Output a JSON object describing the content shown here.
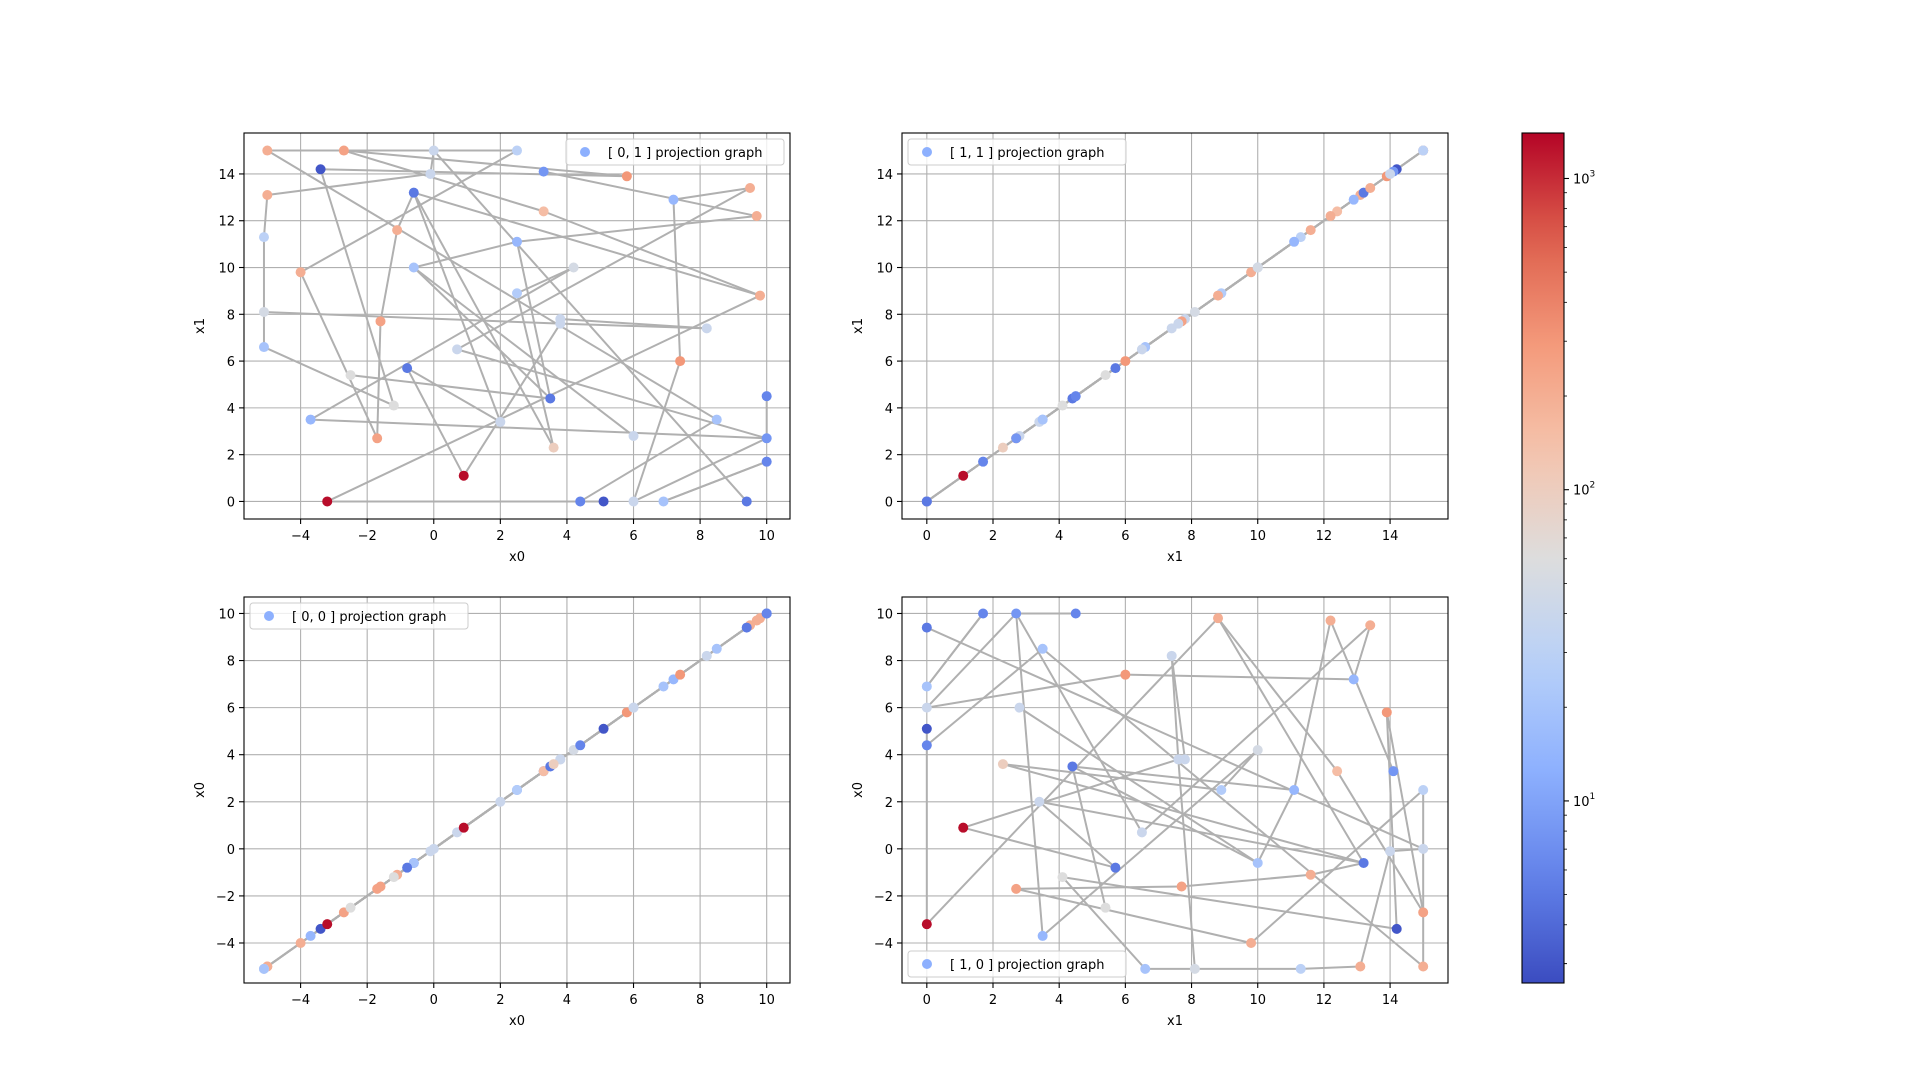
{
  "colors": {
    "edge": "#b0b0b0",
    "grid": "#b0b0b0",
    "legend_marker": "#8db0fe",
    "colormap": "coolwarm"
  },
  "colorbar": {
    "scale": "log",
    "vmin": 2.6,
    "vmax": 1400,
    "tick_labels": [
      "10^1",
      "10^2",
      "10^3"
    ],
    "tick_values": [
      10,
      100,
      1000
    ]
  },
  "chart_data": [
    {
      "type": "scatter",
      "panel": "top-left",
      "legend": "[ 0, 1 ] projection graph",
      "legend_position": "upper right",
      "xlabel": "x0",
      "ylabel": "x1",
      "xlim": [
        -5.7,
        10.7
      ],
      "ylim": [
        -0.75,
        15.75
      ],
      "xticks": [
        -4,
        -2,
        0,
        2,
        4,
        6,
        8,
        10
      ],
      "yticks": [
        0,
        2,
        4,
        6,
        8,
        10,
        12,
        14
      ],
      "grid": true,
      "points": [
        {
          "x": -5.0,
          "y": 15.0,
          "c": 200
        },
        {
          "x": -2.7,
          "y": 15.0,
          "c": 250
        },
        {
          "x": 0.0,
          "y": 15.0,
          "c": 40
        },
        {
          "x": 2.5,
          "y": 15.0,
          "c": 30
        },
        {
          "x": -3.4,
          "y": 14.2,
          "c": 3
        },
        {
          "x": 3.3,
          "y": 14.1,
          "c": 8
        },
        {
          "x": 5.8,
          "y": 13.9,
          "c": 300
        },
        {
          "x": -5.0,
          "y": 13.1,
          "c": 200
        },
        {
          "x": -0.6,
          "y": 13.2,
          "c": 5
        },
        {
          "x": -0.1,
          "y": 14.0,
          "c": 40
        },
        {
          "x": 7.2,
          "y": 12.9,
          "c": 15
        },
        {
          "x": 9.5,
          "y": 13.4,
          "c": 200
        },
        {
          "x": 3.3,
          "y": 12.4,
          "c": 150
        },
        {
          "x": 9.7,
          "y": 12.2,
          "c": 200
        },
        {
          "x": -5.1,
          "y": 11.3,
          "c": 30
        },
        {
          "x": -1.1,
          "y": 11.6,
          "c": 200
        },
        {
          "x": 2.5,
          "y": 11.1,
          "c": 15
        },
        {
          "x": -4.0,
          "y": 9.8,
          "c": 200
        },
        {
          "x": -0.6,
          "y": 10.0,
          "c": 20
        },
        {
          "x": 4.2,
          "y": 10.0,
          "c": 50
        },
        {
          "x": 2.5,
          "y": 8.9,
          "c": 25
        },
        {
          "x": 9.8,
          "y": 8.8,
          "c": 200
        },
        {
          "x": -5.1,
          "y": 8.1,
          "c": 50
        },
        {
          "x": 3.8,
          "y": 7.8,
          "c": 40
        },
        {
          "x": -1.6,
          "y": 7.7,
          "c": 250
        },
        {
          "x": 3.8,
          "y": 7.6,
          "c": 40
        },
        {
          "x": 8.2,
          "y": 7.4,
          "c": 40
        },
        {
          "x": -5.1,
          "y": 6.6,
          "c": 20
        },
        {
          "x": 0.7,
          "y": 6.5,
          "c": 40
        },
        {
          "x": 7.4,
          "y": 6.0,
          "c": 300
        },
        {
          "x": -0.8,
          "y": 5.7,
          "c": 5
        },
        {
          "x": -2.5,
          "y": 5.4,
          "c": 60
        },
        {
          "x": 3.5,
          "y": 4.4,
          "c": 5
        },
        {
          "x": 10.0,
          "y": 4.5,
          "c": 6
        },
        {
          "x": -1.2,
          "y": 4.1,
          "c": 60
        },
        {
          "x": -3.7,
          "y": 3.5,
          "c": 15
        },
        {
          "x": 2.0,
          "y": 3.4,
          "c": 40
        },
        {
          "x": 8.5,
          "y": 3.5,
          "c": 20
        },
        {
          "x": 6.0,
          "y": 2.8,
          "c": 40
        },
        {
          "x": -1.7,
          "y": 2.7,
          "c": 250
        },
        {
          "x": 10.0,
          "y": 2.7,
          "c": 8
        },
        {
          "x": 3.6,
          "y": 2.3,
          "c": 100
        },
        {
          "x": 10.0,
          "y": 1.7,
          "c": 6
        },
        {
          "x": 0.9,
          "y": 1.1,
          "c": 1300
        },
        {
          "x": -3.2,
          "y": 0.0,
          "c": 1300
        },
        {
          "x": 4.4,
          "y": 0.0,
          "c": 6
        },
        {
          "x": 5.1,
          "y": 0.0,
          "c": 3
        },
        {
          "x": 6.0,
          "y": 0.0,
          "c": 40
        },
        {
          "x": 6.9,
          "y": 0.0,
          "c": 20
        },
        {
          "x": 9.4,
          "y": 0.0,
          "c": 5
        }
      ],
      "edges": [
        [
          0,
          3
        ],
        [
          1,
          6
        ],
        [
          4,
          6
        ],
        [
          2,
          9
        ],
        [
          9,
          7
        ],
        [
          7,
          14
        ],
        [
          14,
          22
        ],
        [
          22,
          27
        ],
        [
          27,
          34
        ],
        [
          34,
          4
        ],
        [
          1,
          12
        ],
        [
          12,
          21
        ],
        [
          21,
          8
        ],
        [
          8,
          41
        ],
        [
          41,
          20
        ],
        [
          20,
          19
        ],
        [
          19,
          35
        ],
        [
          35,
          40
        ],
        [
          40,
          28
        ],
        [
          28,
          11
        ],
        [
          11,
          10
        ],
        [
          10,
          29
        ],
        [
          29,
          47
        ],
        [
          47,
          40
        ],
        [
          3,
          17
        ],
        [
          17,
          39
        ],
        [
          39,
          24
        ],
        [
          24,
          15
        ],
        [
          15,
          8
        ],
        [
          8,
          36
        ],
        [
          36,
          30
        ],
        [
          30,
          43
        ],
        [
          43,
          25
        ],
        [
          25,
          26
        ],
        [
          23,
          26
        ],
        [
          22,
          25
        ],
        [
          33,
          40
        ],
        [
          2,
          49
        ],
        [
          44,
          46
        ],
        [
          44,
          21
        ],
        [
          31,
          32
        ],
        [
          32,
          18
        ],
        [
          18,
          38
        ],
        [
          18,
          16
        ],
        [
          16,
          32
        ],
        [
          5,
          13
        ],
        [
          13,
          16
        ],
        [
          37,
          45
        ],
        [
          48,
          42
        ],
        [
          42,
          48
        ],
        [
          0,
          37
        ]
      ]
    },
    {
      "type": "scatter",
      "panel": "top-right",
      "legend": "[ 1, 1 ] projection graph",
      "legend_position": "upper left",
      "xlabel": "x1",
      "ylabel": "x1",
      "xlim": [
        -0.75,
        15.75
      ],
      "ylim": [
        -0.75,
        15.75
      ],
      "xticks": [
        0,
        2,
        4,
        6,
        8,
        10,
        12,
        14
      ],
      "yticks": [
        0,
        2,
        4,
        6,
        8,
        10,
        12,
        14
      ],
      "grid": true,
      "diagonal": true
    },
    {
      "type": "scatter",
      "panel": "bottom-left",
      "legend": "[ 0, 0 ] projection graph",
      "legend_position": "upper left",
      "xlabel": "x0",
      "ylabel": "x0",
      "xlim": [
        -5.7,
        10.7
      ],
      "ylim": [
        -5.7,
        10.7
      ],
      "xticks": [
        -4,
        -2,
        0,
        2,
        4,
        6,
        8,
        10
      ],
      "yticks": [
        -4,
        -2,
        0,
        2,
        4,
        6,
        8,
        10
      ],
      "grid": true,
      "diagonal": true
    },
    {
      "type": "scatter",
      "panel": "bottom-right",
      "legend": "[ 1, 0 ] projection graph",
      "legend_position": "lower left",
      "xlabel": "x1",
      "ylabel": "x0",
      "xlim": [
        -0.75,
        15.75
      ],
      "ylim": [
        -5.7,
        10.7
      ],
      "xticks": [
        0,
        2,
        4,
        6,
        8,
        10,
        12,
        14
      ],
      "yticks": [
        -4,
        -2,
        0,
        2,
        4,
        6,
        8,
        10
      ],
      "grid": true,
      "swap_axes": true
    }
  ]
}
